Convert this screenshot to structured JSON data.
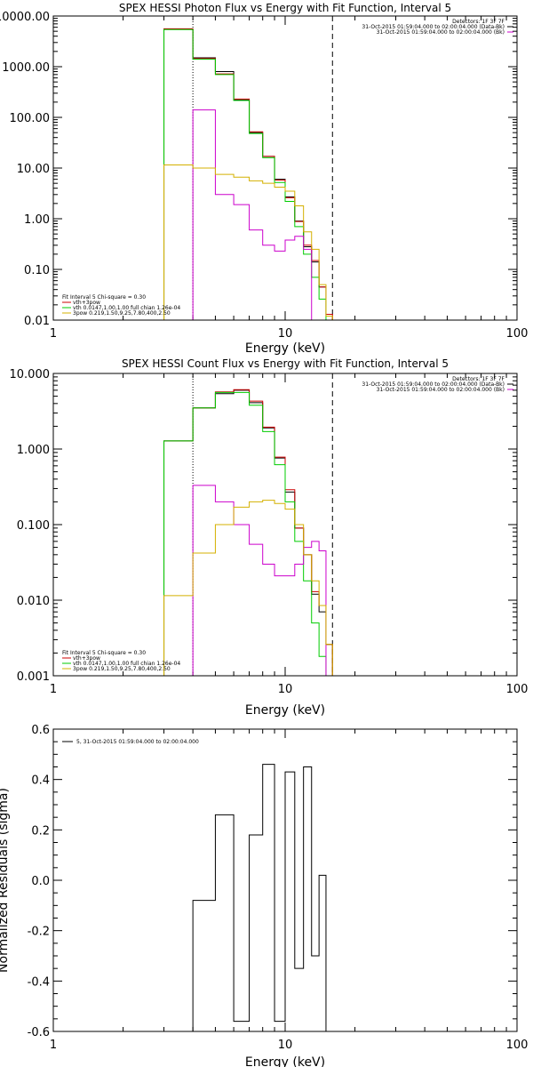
{
  "chart_data": [
    {
      "type": "line",
      "title": "SPEX HESSI Photon Flux vs Energy with Fit Function, Interval 5",
      "xlabel": "Energy (keV)",
      "ylabel": "",
      "xscale": "log",
      "yscale": "log",
      "xlim": [
        1,
        100
      ],
      "ylim": [
        0.01,
        10000
      ],
      "x_ticks": [
        {
          "v": 1,
          "t": "1"
        },
        {
          "v": 10,
          "t": "10"
        },
        {
          "v": 100,
          "t": "100"
        }
      ],
      "y_ticks": [
        {
          "v": 10000,
          "t": "10000.00"
        },
        {
          "v": 1000,
          "t": "1000.00"
        },
        {
          "v": 100,
          "t": "100.00"
        },
        {
          "v": 10,
          "t": "10.00"
        },
        {
          "v": 1,
          "t": "1.00"
        },
        {
          "v": 0.1,
          "t": "0.10"
        },
        {
          "v": 0.01,
          "t": "0.01"
        }
      ],
      "legend_top_right": [
        "Detectors: 1F 3F 7F",
        "31-Oct-2015 01:59:04.000 to 02:00:04.000 (Data-Bk)",
        "31-Oct-2015 01:59:04.000 to 02:00:04.000 (Bk)"
      ],
      "legend_top_right_colors": [
        "",
        "#000000",
        "#cc00cc"
      ],
      "legend_bottom_left": [
        "Fit Interval 5   Chi-square = 0.30",
        "vth+3pow",
        "vth 0.0147,1.00,1.00  full chian 1.26e-04",
        "3pow 0.219,1.50,9.25,7.80,400,2.50"
      ],
      "legend_bottom_left_colors": [
        "",
        "#cc0000",
        "#00cc00",
        "#d4b000"
      ],
      "vlines": [
        {
          "x": 4.0,
          "style": "dotted"
        },
        {
          "x": 16.0,
          "style": "dashed"
        }
      ],
      "edges": [
        3,
        4,
        5,
        6,
        7,
        8,
        9,
        10,
        11,
        12,
        13,
        14,
        15,
        16,
        18,
        20
      ],
      "series": [
        {
          "color": "#000000",
          "values": [
            5500,
            1500,
            800,
            220,
            50,
            17,
            6,
            2.7,
            0.9,
            0.28,
            0.14,
            0.045,
            0.012,
            0,
            0
          ]
        },
        {
          "color": "#cc0000",
          "values": [
            5600,
            1450,
            720,
            230,
            52,
            17,
            5.8,
            2.6,
            0.88,
            0.3,
            0.15,
            0.045,
            0.013,
            0,
            0
          ]
        },
        {
          "color": "#00cc00",
          "values": [
            5400,
            1400,
            700,
            215,
            48,
            16,
            5.2,
            2.2,
            0.7,
            0.2,
            0.07,
            0.026,
            0.007,
            0,
            0
          ]
        },
        {
          "color": "#cc00cc",
          "values": [
            0,
            140,
            3,
            1.9,
            0.6,
            0.3,
            0.23,
            0.38,
            0.45,
            0.25,
            0,
            0,
            0,
            0,
            0
          ]
        },
        {
          "color": "#d4b000",
          "values": [
            11.5,
            10,
            7.5,
            6.6,
            5.6,
            5,
            4.2,
            3.5,
            1.8,
            0.55,
            0.25,
            0.05,
            0.012,
            0,
            0
          ]
        }
      ]
    },
    {
      "type": "line",
      "title": "SPEX HESSI Count Flux vs Energy with Fit Function, Interval 5",
      "xlabel": "Energy (keV)",
      "ylabel": "",
      "xscale": "log",
      "yscale": "log",
      "xlim": [
        1,
        100
      ],
      "ylim": [
        0.001,
        10
      ],
      "x_ticks": [
        {
          "v": 1,
          "t": "1"
        },
        {
          "v": 10,
          "t": "10"
        },
        {
          "v": 100,
          "t": "100"
        }
      ],
      "y_ticks": [
        {
          "v": 10,
          "t": "10.000"
        },
        {
          "v": 1,
          "t": "1.000"
        },
        {
          "v": 0.1,
          "t": "0.100"
        },
        {
          "v": 0.01,
          "t": "0.010"
        },
        {
          "v": 0.001,
          "t": "0.001"
        }
      ],
      "legend_top_right": [
        "Detectors: 1F 3F 7F",
        "31-Oct-2015 01:59:04.000 to 02:00:04.000 (Data-Bk)",
        "31-Oct-2015 01:59:04.000 to 02:00:04.000 (Bk)"
      ],
      "legend_top_right_colors": [
        "",
        "#000000",
        "#cc00cc"
      ],
      "legend_bottom_left": [
        "Fit Interval 5   Chi-square = 0.30",
        "vth+3pow",
        "vth 0.0147,1.00,1.00  full chian 1.26e-04",
        "3pow 0.219,1.50,9.25,7.80,400,2.50"
      ],
      "legend_bottom_left_colors": [
        "",
        "#cc0000",
        "#00cc00",
        "#d4b000"
      ],
      "vlines": [
        {
          "x": 4.0,
          "style": "dotted"
        },
        {
          "x": 16.0,
          "style": "dashed"
        }
      ],
      "edges": [
        3,
        4,
        5,
        6,
        7,
        8,
        9,
        10,
        11,
        12,
        13,
        14,
        15,
        16,
        18,
        20
      ],
      "series": [
        {
          "color": "#000000",
          "values": [
            1.28,
            3.5,
            5.4,
            6,
            4.1,
            1.9,
            0.76,
            0.27,
            0.09,
            0.04,
            0.012,
            0.007,
            0.0026,
            0.001,
            0
          ]
        },
        {
          "color": "#cc0000",
          "values": [
            1.28,
            3.5,
            5.7,
            6.1,
            4.3,
            1.95,
            0.78,
            0.29,
            0.09,
            0.04,
            0.013,
            0.0085,
            0.0026,
            0.001,
            0
          ]
        },
        {
          "color": "#00cc00",
          "values": [
            1.28,
            3.5,
            5.6,
            5.6,
            3.8,
            1.7,
            0.62,
            0.2,
            0.06,
            0.018,
            0.005,
            0.0018,
            0,
            0,
            0
          ]
        },
        {
          "color": "#cc00cc",
          "values": [
            0,
            0.33,
            0.2,
            0.1,
            0.055,
            0.03,
            0.021,
            0.021,
            0.03,
            0.05,
            0.06,
            0.045,
            0,
            0,
            0
          ]
        },
        {
          "color": "#d4b000",
          "values": [
            0.0115,
            0.042,
            0.1,
            0.17,
            0.2,
            0.21,
            0.19,
            0.16,
            0.1,
            0.04,
            0.018,
            0.0085,
            0.0026,
            0.001,
            0
          ]
        }
      ]
    },
    {
      "type": "line",
      "title": "",
      "xlabel": "Energy (keV)",
      "ylabel": "Normalized Residuals (sigma)",
      "xscale": "log",
      "yscale": "linear",
      "xlim": [
        1,
        100
      ],
      "ylim": [
        -0.6,
        0.6
      ],
      "x_ticks": [
        {
          "v": 1,
          "t": "1"
        },
        {
          "v": 10,
          "t": "10"
        },
        {
          "v": 100,
          "t": "100"
        }
      ],
      "y_ticks": [
        {
          "v": 0.6,
          "t": "0.6"
        },
        {
          "v": 0.4,
          "t": "0.4"
        },
        {
          "v": 0.2,
          "t": "0.2"
        },
        {
          "v": 0.0,
          "t": "0.0"
        },
        {
          "v": -0.2,
          "t": "-0.2"
        },
        {
          "v": -0.4,
          "t": "-0.4"
        },
        {
          "v": -0.6,
          "t": "-0.6"
        }
      ],
      "legend_top_left": [
        "5, 31-Oct-2015 01:59:04.000 to 02:00:04.000"
      ],
      "legend_top_left_colors": [
        "#000000"
      ],
      "edges": [
        4,
        5,
        6,
        7,
        8,
        9,
        10,
        11,
        12,
        13,
        14,
        15,
        16
      ],
      "series": [
        {
          "color": "#000000",
          "values": [
            -0.08,
            0.26,
            -0.56,
            0.18,
            0.46,
            -0.56,
            0.43,
            -0.35,
            0.45,
            -0.3,
            0.02,
            -0.6
          ]
        }
      ]
    }
  ]
}
